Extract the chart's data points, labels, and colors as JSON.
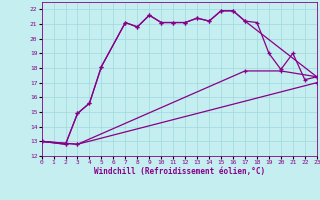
{
  "xlabel": "Windchill (Refroidissement éolien,°C)",
  "bg_color": "#c5eef0",
  "grid_color": "#9fd8dc",
  "line_color": "#880088",
  "xmin": 0,
  "xmax": 23,
  "ymin": 12,
  "ymax": 22.5,
  "yticks": [
    12,
    13,
    14,
    15,
    16,
    17,
    18,
    19,
    20,
    21,
    22
  ],
  "xticks": [
    0,
    1,
    2,
    3,
    4,
    5,
    6,
    7,
    8,
    9,
    10,
    11,
    12,
    13,
    14,
    15,
    16,
    17,
    18,
    19,
    20,
    21,
    22,
    23
  ],
  "curve1_x": [
    0,
    2,
    3,
    4,
    5,
    7,
    8,
    9,
    10,
    11,
    12,
    13,
    14,
    15,
    16,
    17,
    18,
    19,
    20,
    21,
    22,
    23
  ],
  "curve1_y": [
    13.0,
    12.8,
    14.9,
    15.6,
    18.1,
    21.1,
    20.8,
    21.6,
    21.1,
    21.1,
    21.1,
    21.4,
    21.2,
    21.9,
    21.9,
    21.2,
    21.1,
    19.0,
    17.9,
    19.0,
    17.2,
    17.4
  ],
  "curve2_x": [
    0,
    2,
    3,
    4,
    5,
    7,
    8,
    9,
    10,
    11,
    12,
    13,
    14,
    15,
    16,
    17,
    23
  ],
  "curve2_y": [
    13.0,
    12.8,
    14.9,
    15.6,
    18.1,
    21.1,
    20.8,
    21.6,
    21.1,
    21.1,
    21.1,
    21.4,
    21.2,
    21.9,
    21.9,
    21.2,
    17.4
  ],
  "curve3_x": [
    0,
    3,
    17,
    20,
    23
  ],
  "curve3_y": [
    13.0,
    12.8,
    17.8,
    17.8,
    17.4
  ],
  "curve4_x": [
    0,
    3,
    23
  ],
  "curve4_y": [
    13.0,
    12.8,
    17.0
  ]
}
